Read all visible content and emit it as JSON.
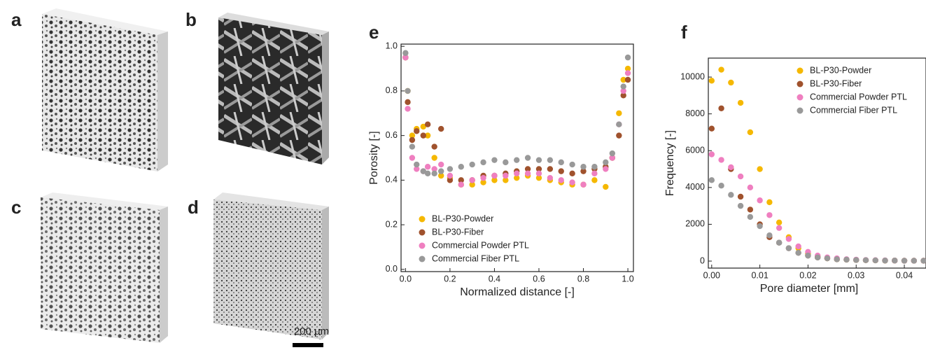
{
  "panels": {
    "labels": [
      "a",
      "b",
      "c",
      "d"
    ],
    "scale_bar": "200 μm"
  },
  "chart_data": [
    {
      "type": "scatter",
      "label": "e",
      "xlabel": "Normalized distance [-]",
      "ylabel": "Porosity [-]",
      "x": [
        0,
        0.01,
        0.03,
        0.05,
        0.08,
        0.1,
        0.13,
        0.16,
        0.2,
        0.25,
        0.3,
        0.35,
        0.4,
        0.45,
        0.5,
        0.55,
        0.6,
        0.65,
        0.7,
        0.75,
        0.8,
        0.85,
        0.9,
        0.93,
        0.96,
        0.98,
        1.0
      ],
      "series": [
        {
          "name": "BL-P30-Powder",
          "color": "#f5b800",
          "values": [
            0.95,
            0.8,
            0.6,
            0.63,
            0.64,
            0.6,
            0.5,
            0.42,
            0.41,
            0.38,
            0.38,
            0.39,
            0.4,
            0.4,
            0.41,
            0.42,
            0.41,
            0.4,
            0.39,
            0.38,
            0.38,
            0.4,
            0.37,
            0.5,
            0.7,
            0.85,
            0.9
          ]
        },
        {
          "name": "BL-P30-Fiber",
          "color": "#a0522d",
          "values": [
            0.95,
            0.75,
            0.58,
            0.62,
            0.6,
            0.65,
            0.55,
            0.63,
            0.4,
            0.4,
            0.4,
            0.42,
            0.42,
            0.43,
            0.44,
            0.45,
            0.45,
            0.45,
            0.44,
            0.43,
            0.44,
            0.45,
            0.46,
            0.5,
            0.6,
            0.78,
            0.85
          ]
        },
        {
          "name": "Commercial Powder PTL",
          "color": "#ef7fc0",
          "values": [
            0.95,
            0.72,
            0.5,
            0.45,
            0.44,
            0.46,
            0.45,
            0.47,
            0.42,
            0.38,
            0.4,
            0.41,
            0.42,
            0.42,
            0.43,
            0.43,
            0.43,
            0.41,
            0.4,
            0.39,
            0.38,
            0.43,
            0.45,
            0.5,
            0.65,
            0.8,
            0.88
          ]
        },
        {
          "name": "Commercial Fiber PTL",
          "color": "#999999",
          "values": [
            0.97,
            0.8,
            0.55,
            0.47,
            0.44,
            0.43,
            0.43,
            0.44,
            0.45,
            0.46,
            0.47,
            0.48,
            0.49,
            0.48,
            0.49,
            0.5,
            0.49,
            0.49,
            0.48,
            0.47,
            0.46,
            0.46,
            0.48,
            0.52,
            0.65,
            0.82,
            0.95
          ]
        }
      ],
      "xlim": [
        -0.02,
        1.025
      ],
      "ylim": [
        -0.01,
        1.01
      ],
      "xticks": [
        {
          "value": 0,
          "label": "0.0"
        },
        0.2,
        0.4,
        0.6,
        0.8,
        {
          "value": 1,
          "label": "1.0"
        }
      ],
      "yticks": [
        {
          "value": 0,
          "label": "0.0"
        },
        0.2,
        0.4,
        0.6,
        0.8,
        {
          "value": 1,
          "label": "1.0"
        }
      ],
      "legend": "lower left"
    },
    {
      "type": "scatter",
      "label": "f",
      "xlabel": "Pore diameter [mm]",
      "ylabel": "Frequency [-]",
      "x": [
        0,
        0.002,
        0.004,
        0.006,
        0.008,
        0.01,
        0.012,
        0.014,
        0.016,
        0.018,
        0.02,
        0.022,
        0.024,
        0.026,
        0.028,
        0.03,
        0.032,
        0.034,
        0.036,
        0.038,
        0.04,
        0.042,
        0.044
      ],
      "series": [
        {
          "name": "BL-P30-Powder",
          "color": "#f5b800",
          "values": [
            9800,
            10400,
            9700,
            8600,
            7000,
            5000,
            3200,
            2100,
            1300,
            700,
            400,
            250,
            150,
            100,
            80,
            60,
            50,
            40,
            30,
            30,
            20,
            20,
            20
          ]
        },
        {
          "name": "BL-P30-Fiber",
          "color": "#a0522d",
          "values": [
            7200,
            8300,
            5000,
            3500,
            2800,
            2000,
            1300,
            1000,
            700,
            450,
            300,
            200,
            150,
            100,
            80,
            60,
            50,
            40,
            30,
            30,
            20,
            20,
            20
          ]
        },
        {
          "name": "Commercial Powder PTL",
          "color": "#ef7fc0",
          "values": [
            5800,
            5500,
            5100,
            4600,
            4000,
            3300,
            2500,
            1800,
            1200,
            800,
            500,
            300,
            200,
            150,
            100,
            80,
            60,
            50,
            40,
            30,
            20,
            20,
            20
          ]
        },
        {
          "name": "Commercial Fiber PTL",
          "color": "#999999",
          "values": [
            4400,
            4100,
            3600,
            3000,
            2400,
            1900,
            1400,
            1000,
            700,
            450,
            300,
            200,
            150,
            100,
            80,
            60,
            50,
            40,
            30,
            30,
            20,
            20,
            20
          ]
        }
      ],
      "xlim": [
        -0.0007,
        0.0445
      ],
      "ylim": [
        -380,
        11030
      ],
      "xticks": [
        {
          "value": 0,
          "label": "0.00"
        },
        0.01,
        0.02,
        0.03,
        0.04
      ],
      "yticks": [
        0,
        2000,
        4000,
        6000,
        8000,
        10000
      ],
      "legend": "upper right"
    }
  ]
}
